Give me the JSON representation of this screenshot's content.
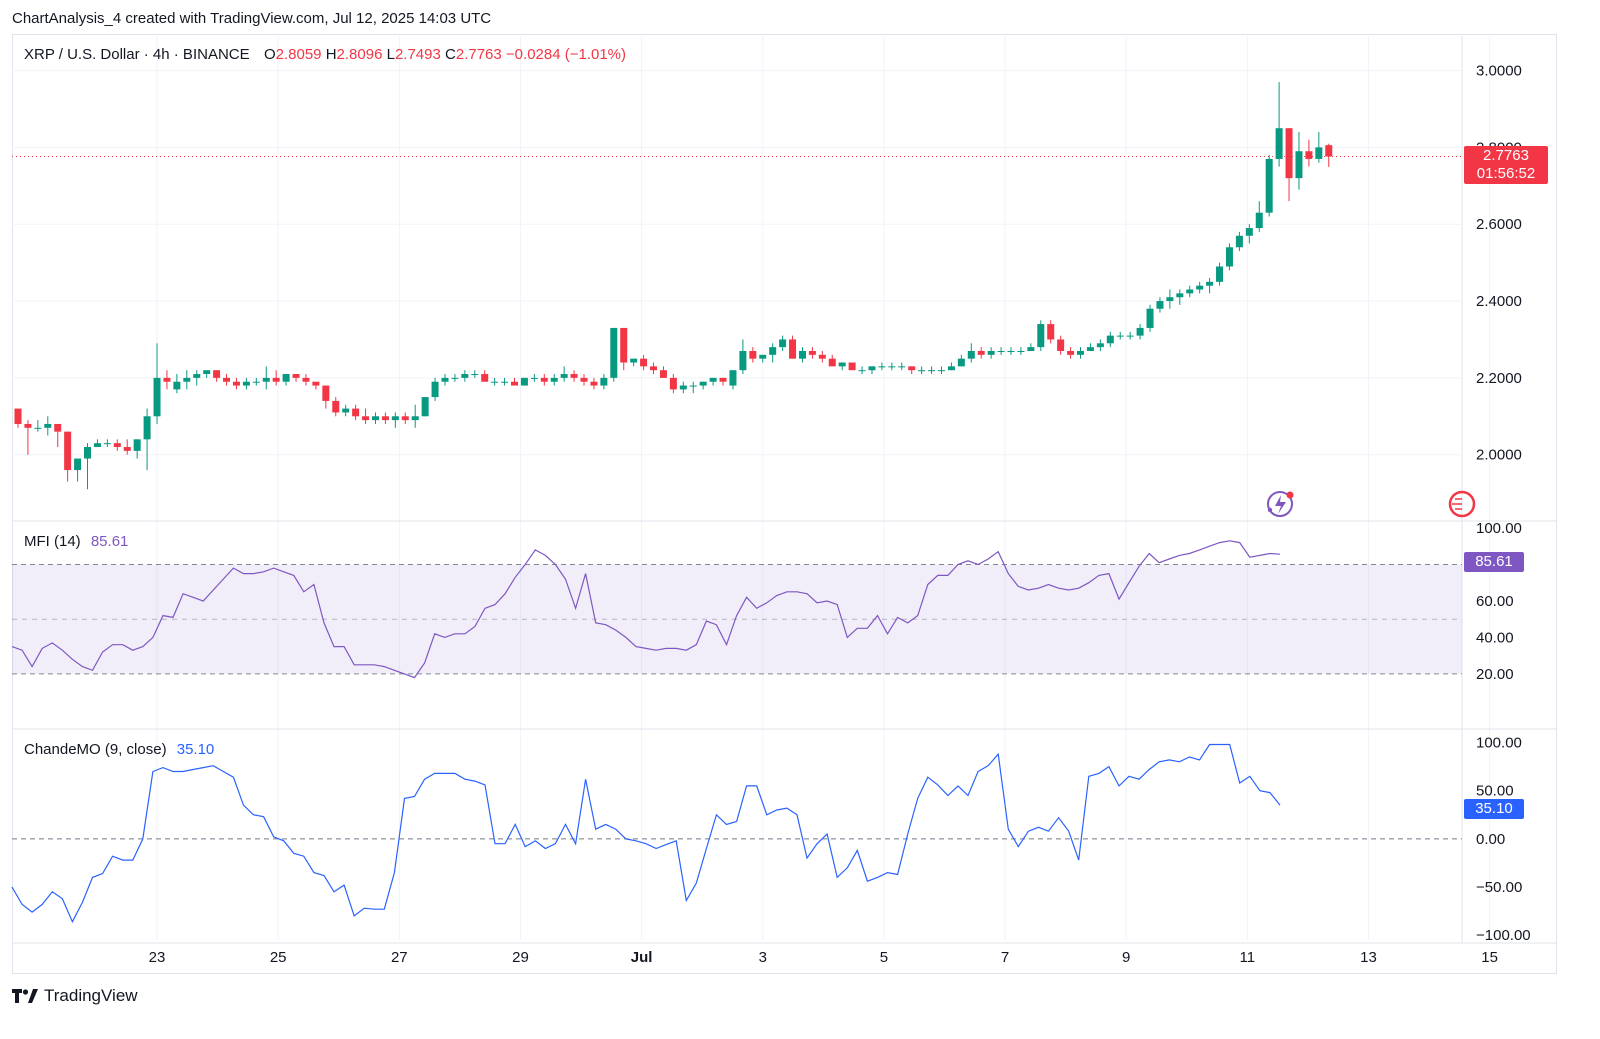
{
  "header": {
    "attribution": "ChartAnalysis_4 created with TradingView.com, Jul 12, 2025 14:03 UTC"
  },
  "legend": {
    "symbol": "XRP / U.S. Dollar · 4h · BINANCE",
    "o_label": "O",
    "o_value": "2.8059",
    "h_label": "H",
    "h_value": "2.8096",
    "l_label": "L",
    "l_value": "2.7493",
    "c_label": "C",
    "c_value": "2.7763",
    "change": "−0.0284 (−1.01%)"
  },
  "price_badge": {
    "price": "2.7763",
    "countdown": "01:56:52"
  },
  "mfi": {
    "label": "MFI (14)",
    "value": "85.61"
  },
  "cmo": {
    "label": "ChandeMO (9, close)",
    "value": "35.10"
  },
  "footer": {
    "brand": "TradingView"
  },
  "colors": {
    "up": "#089981",
    "down": "#f23645",
    "mfi": "#7e57c2",
    "cmo": "#2962ff",
    "grid": "#f0f3fa"
  },
  "chart_data": [
    {
      "type": "candlestick",
      "title": "XRP / U.S. Dollar · 4h · BINANCE",
      "x_tick_labels": [
        "23",
        "25",
        "27",
        "29",
        "Jul",
        "3",
        "5",
        "7",
        "9",
        "11",
        "13",
        "15"
      ],
      "y_tick_labels": [
        "3.0000",
        "2.8000",
        "2.6000",
        "2.4000",
        "2.2000",
        "2.0000"
      ],
      "ylim": [
        1.83,
        3.09
      ],
      "last_price": 2.7763,
      "ohlc": [
        [
          2.12,
          2.12,
          2.07,
          2.08
        ],
        [
          2.08,
          2.09,
          2.0,
          2.07
        ],
        [
          2.07,
          2.09,
          2.06,
          2.07
        ],
        [
          2.07,
          2.1,
          2.05,
          2.08
        ],
        [
          2.08,
          2.08,
          2.02,
          2.06
        ],
        [
          2.06,
          2.06,
          1.93,
          1.96
        ],
        [
          1.96,
          1.99,
          1.93,
          1.99
        ],
        [
          1.99,
          2.03,
          1.91,
          2.02
        ],
        [
          2.02,
          2.04,
          2.02,
          2.03
        ],
        [
          2.03,
          2.04,
          2.02,
          2.03
        ],
        [
          2.03,
          2.04,
          2.01,
          2.02
        ],
        [
          2.02,
          2.04,
          2.0,
          2.01
        ],
        [
          2.01,
          2.04,
          1.99,
          2.04
        ],
        [
          2.04,
          2.12,
          1.96,
          2.1
        ],
        [
          2.1,
          2.29,
          2.08,
          2.2
        ],
        [
          2.2,
          2.22,
          2.17,
          2.19
        ],
        [
          2.17,
          2.21,
          2.16,
          2.19
        ],
        [
          2.19,
          2.22,
          2.17,
          2.2
        ],
        [
          2.2,
          2.22,
          2.18,
          2.21
        ],
        [
          2.21,
          2.22,
          2.2,
          2.22
        ],
        [
          2.22,
          2.22,
          2.19,
          2.2
        ],
        [
          2.2,
          2.21,
          2.18,
          2.19
        ],
        [
          2.19,
          2.2,
          2.17,
          2.18
        ],
        [
          2.18,
          2.2,
          2.17,
          2.19
        ],
        [
          2.19,
          2.2,
          2.18,
          2.19
        ],
        [
          2.19,
          2.23,
          2.17,
          2.2
        ],
        [
          2.2,
          2.22,
          2.18,
          2.19
        ],
        [
          2.19,
          2.21,
          2.18,
          2.21
        ],
        [
          2.21,
          2.21,
          2.19,
          2.2
        ],
        [
          2.2,
          2.21,
          2.18,
          2.19
        ],
        [
          2.19,
          2.19,
          2.17,
          2.18
        ],
        [
          2.18,
          2.18,
          2.12,
          2.14
        ],
        [
          2.14,
          2.15,
          2.1,
          2.11
        ],
        [
          2.11,
          2.13,
          2.1,
          2.12
        ],
        [
          2.12,
          2.13,
          2.09,
          2.1
        ],
        [
          2.1,
          2.12,
          2.08,
          2.09
        ],
        [
          2.09,
          2.11,
          2.08,
          2.1
        ],
        [
          2.1,
          2.11,
          2.08,
          2.09
        ],
        [
          2.09,
          2.11,
          2.07,
          2.1
        ],
        [
          2.1,
          2.11,
          2.08,
          2.09
        ],
        [
          2.09,
          2.13,
          2.07,
          2.1
        ],
        [
          2.1,
          2.15,
          2.1,
          2.15
        ],
        [
          2.15,
          2.2,
          2.14,
          2.19
        ],
        [
          2.19,
          2.21,
          2.18,
          2.2
        ],
        [
          2.2,
          2.21,
          2.19,
          2.2
        ],
        [
          2.2,
          2.22,
          2.19,
          2.21
        ],
        [
          2.21,
          2.22,
          2.2,
          2.21
        ],
        [
          2.21,
          2.22,
          2.19,
          2.19
        ],
        [
          2.19,
          2.2,
          2.18,
          2.19
        ],
        [
          2.19,
          2.2,
          2.18,
          2.19
        ],
        [
          2.19,
          2.2,
          2.18,
          2.18
        ],
        [
          2.18,
          2.2,
          2.18,
          2.2
        ],
        [
          2.2,
          2.21,
          2.19,
          2.2
        ],
        [
          2.2,
          2.21,
          2.18,
          2.19
        ],
        [
          2.19,
          2.21,
          2.18,
          2.2
        ],
        [
          2.2,
          2.23,
          2.19,
          2.21
        ],
        [
          2.21,
          2.22,
          2.19,
          2.2
        ],
        [
          2.2,
          2.21,
          2.18,
          2.19
        ],
        [
          2.19,
          2.2,
          2.17,
          2.18
        ],
        [
          2.18,
          2.21,
          2.17,
          2.2
        ],
        [
          2.2,
          2.33,
          2.19,
          2.33
        ],
        [
          2.33,
          2.33,
          2.22,
          2.24
        ],
        [
          2.24,
          2.25,
          2.23,
          2.25
        ],
        [
          2.25,
          2.26,
          2.22,
          2.23
        ],
        [
          2.23,
          2.24,
          2.21,
          2.22
        ],
        [
          2.22,
          2.23,
          2.2,
          2.2
        ],
        [
          2.2,
          2.21,
          2.16,
          2.17
        ],
        [
          2.17,
          2.19,
          2.16,
          2.18
        ],
        [
          2.18,
          2.19,
          2.16,
          2.18
        ],
        [
          2.18,
          2.19,
          2.17,
          2.19
        ],
        [
          2.19,
          2.2,
          2.18,
          2.2
        ],
        [
          2.2,
          2.2,
          2.18,
          2.19
        ],
        [
          2.18,
          2.22,
          2.17,
          2.22
        ],
        [
          2.22,
          2.3,
          2.21,
          2.27
        ],
        [
          2.27,
          2.28,
          2.24,
          2.25
        ],
        [
          2.25,
          2.26,
          2.24,
          2.26
        ],
        [
          2.26,
          2.29,
          2.24,
          2.28
        ],
        [
          2.28,
          2.31,
          2.27,
          2.3
        ],
        [
          2.3,
          2.31,
          2.25,
          2.25
        ],
        [
          2.25,
          2.28,
          2.24,
          2.27
        ],
        [
          2.27,
          2.28,
          2.25,
          2.26
        ],
        [
          2.26,
          2.27,
          2.24,
          2.25
        ],
        [
          2.25,
          2.26,
          2.23,
          2.23
        ],
        [
          2.23,
          2.24,
          2.22,
          2.24
        ],
        [
          2.24,
          2.24,
          2.22,
          2.22
        ],
        [
          2.22,
          2.23,
          2.21,
          2.22
        ],
        [
          2.22,
          2.23,
          2.21,
          2.23
        ],
        [
          2.23,
          2.24,
          2.22,
          2.23
        ],
        [
          2.23,
          2.24,
          2.22,
          2.23
        ],
        [
          2.23,
          2.24,
          2.22,
          2.23
        ],
        [
          2.23,
          2.23,
          2.21,
          2.22
        ],
        [
          2.22,
          2.23,
          2.21,
          2.22
        ],
        [
          2.22,
          2.23,
          2.21,
          2.22
        ],
        [
          2.22,
          2.23,
          2.21,
          2.22
        ],
        [
          2.22,
          2.24,
          2.22,
          2.23
        ],
        [
          2.23,
          2.26,
          2.23,
          2.25
        ],
        [
          2.25,
          2.29,
          2.24,
          2.27
        ],
        [
          2.27,
          2.28,
          2.25,
          2.26
        ],
        [
          2.26,
          2.28,
          2.25,
          2.27
        ],
        [
          2.27,
          2.28,
          2.26,
          2.27
        ],
        [
          2.27,
          2.28,
          2.26,
          2.27
        ],
        [
          2.27,
          2.28,
          2.26,
          2.27
        ],
        [
          2.27,
          2.29,
          2.27,
          2.28
        ],
        [
          2.28,
          2.35,
          2.27,
          2.34
        ],
        [
          2.34,
          2.35,
          2.29,
          2.3
        ],
        [
          2.3,
          2.31,
          2.26,
          2.27
        ],
        [
          2.27,
          2.28,
          2.25,
          2.26
        ],
        [
          2.26,
          2.28,
          2.25,
          2.27
        ],
        [
          2.27,
          2.29,
          2.27,
          2.28
        ],
        [
          2.28,
          2.3,
          2.27,
          2.29
        ],
        [
          2.29,
          2.32,
          2.28,
          2.31
        ],
        [
          2.31,
          2.32,
          2.3,
          2.31
        ],
        [
          2.31,
          2.32,
          2.3,
          2.31
        ],
        [
          2.31,
          2.34,
          2.3,
          2.33
        ],
        [
          2.33,
          2.39,
          2.32,
          2.38
        ],
        [
          2.38,
          2.41,
          2.37,
          2.4
        ],
        [
          2.4,
          2.43,
          2.38,
          2.41
        ],
        [
          2.41,
          2.43,
          2.39,
          2.42
        ],
        [
          2.42,
          2.44,
          2.41,
          2.43
        ],
        [
          2.43,
          2.45,
          2.42,
          2.44
        ],
        [
          2.44,
          2.46,
          2.42,
          2.45
        ],
        [
          2.45,
          2.5,
          2.44,
          2.49
        ],
        [
          2.49,
          2.55,
          2.48,
          2.54
        ],
        [
          2.54,
          2.58,
          2.53,
          2.57
        ],
        [
          2.57,
          2.6,
          2.55,
          2.59
        ],
        [
          2.59,
          2.66,
          2.58,
          2.63
        ],
        [
          2.63,
          2.78,
          2.62,
          2.77
        ],
        [
          2.77,
          2.97,
          2.75,
          2.85
        ],
        [
          2.85,
          2.85,
          2.66,
          2.72
        ],
        [
          2.72,
          2.84,
          2.69,
          2.79
        ],
        [
          2.79,
          2.82,
          2.75,
          2.77
        ],
        [
          2.77,
          2.84,
          2.76,
          2.8
        ],
        [
          2.8059,
          2.8096,
          2.7493,
          2.7763
        ]
      ]
    },
    {
      "type": "line",
      "title": "MFI (14)",
      "y_tick_labels": [
        "100.00",
        "80.00",
        "60.00",
        "40.00",
        "20.00"
      ],
      "ylim": [
        -8,
        100
      ],
      "band": [
        20,
        80
      ],
      "midline": 50,
      "series": [
        {
          "name": "MFI (14)",
          "values": [
            35,
            33,
            24,
            34,
            37,
            33,
            28,
            24,
            22,
            32,
            36,
            36,
            33,
            35,
            40,
            52,
            51,
            64,
            62,
            60,
            66,
            72,
            78,
            75,
            75,
            76,
            78,
            76,
            74,
            65,
            69,
            48,
            35,
            35,
            25,
            25,
            25,
            24,
            22,
            20,
            18,
            26,
            42,
            40,
            42,
            42,
            46,
            56,
            58,
            64,
            73,
            80,
            88,
            85,
            80,
            72,
            56,
            75,
            48,
            47,
            44,
            40,
            35,
            34,
            33,
            34,
            34,
            33,
            36,
            49,
            47,
            36,
            52,
            62,
            56,
            59,
            63,
            65,
            65,
            64,
            59,
            60,
            58,
            40,
            45,
            45,
            52,
            42,
            51,
            48,
            52,
            69,
            74,
            74,
            80,
            82,
            80,
            83,
            87,
            75,
            68,
            66,
            67,
            69,
            67,
            66,
            67,
            70,
            74,
            75,
            61,
            70,
            79,
            86,
            81,
            83,
            85,
            86,
            88,
            90,
            92,
            93,
            92,
            84,
            85,
            86,
            85.61
          ]
        }
      ]
    },
    {
      "type": "line",
      "title": "ChandeMO (9, close)",
      "y_tick_labels": [
        "100.00",
        "50.00",
        "0.00",
        "−50.00",
        "−100.00"
      ],
      "ylim": [
        -105,
        112
      ],
      "midline": 0,
      "series": [
        {
          "name": "ChandeMO (9, close)",
          "values": [
            -50,
            -68,
            -76,
            -68,
            -55,
            -62,
            -86,
            -66,
            -40,
            -36,
            -18,
            -22,
            -22,
            0,
            70,
            74,
            70,
            70,
            72,
            74,
            76,
            70,
            64,
            35,
            25,
            23,
            2,
            -2,
            -15,
            -18,
            -35,
            -38,
            -55,
            -48,
            -80,
            -72,
            -73,
            -73,
            -35,
            42,
            44,
            62,
            68,
            68,
            68,
            62,
            60,
            56,
            -5,
            -5,
            15,
            -8,
            -2,
            -10,
            -5,
            15,
            -5,
            62,
            10,
            15,
            10,
            0,
            -2,
            -5,
            -10,
            -6,
            -2,
            -64,
            -46,
            -10,
            25,
            15,
            18,
            55,
            55,
            25,
            30,
            32,
            25,
            -20,
            -5,
            5,
            -40,
            -30,
            -12,
            -44,
            -40,
            -35,
            -37,
            5,
            42,
            64,
            56,
            45,
            55,
            45,
            70,
            76,
            88,
            10,
            -8,
            8,
            12,
            8,
            22,
            8,
            -22,
            65,
            68,
            75,
            55,
            65,
            62,
            72,
            80,
            82,
            80,
            85,
            82,
            98,
            98,
            98,
            58,
            65,
            50,
            48,
            35.1
          ]
        }
      ]
    }
  ]
}
